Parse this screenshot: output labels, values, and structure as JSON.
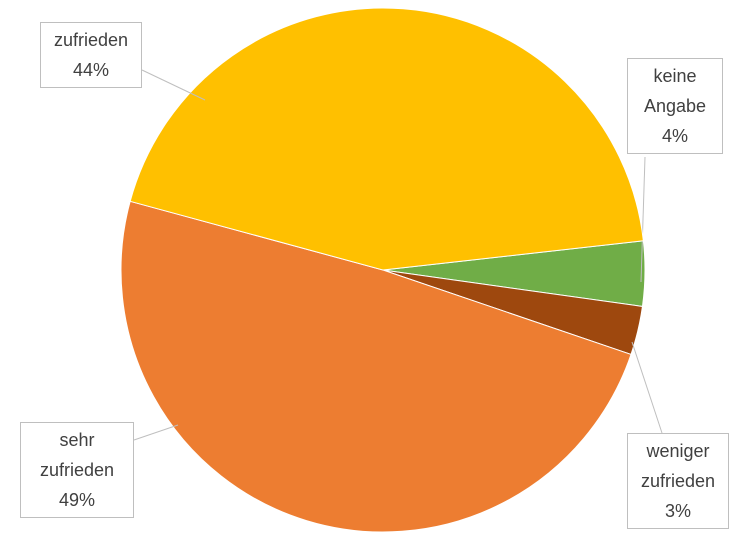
{
  "chart_data": {
    "type": "pie",
    "categories": [
      "keine Angabe",
      "weniger zufrieden",
      "sehr zufrieden",
      "zufrieden"
    ],
    "values": [
      4,
      3,
      49,
      44
    ],
    "value_labels": [
      "4%",
      "3%",
      "49%",
      "44%"
    ],
    "colors": [
      "#70ad47",
      "#9e480e",
      "#ed7d31",
      "#ffc000"
    ]
  }
}
